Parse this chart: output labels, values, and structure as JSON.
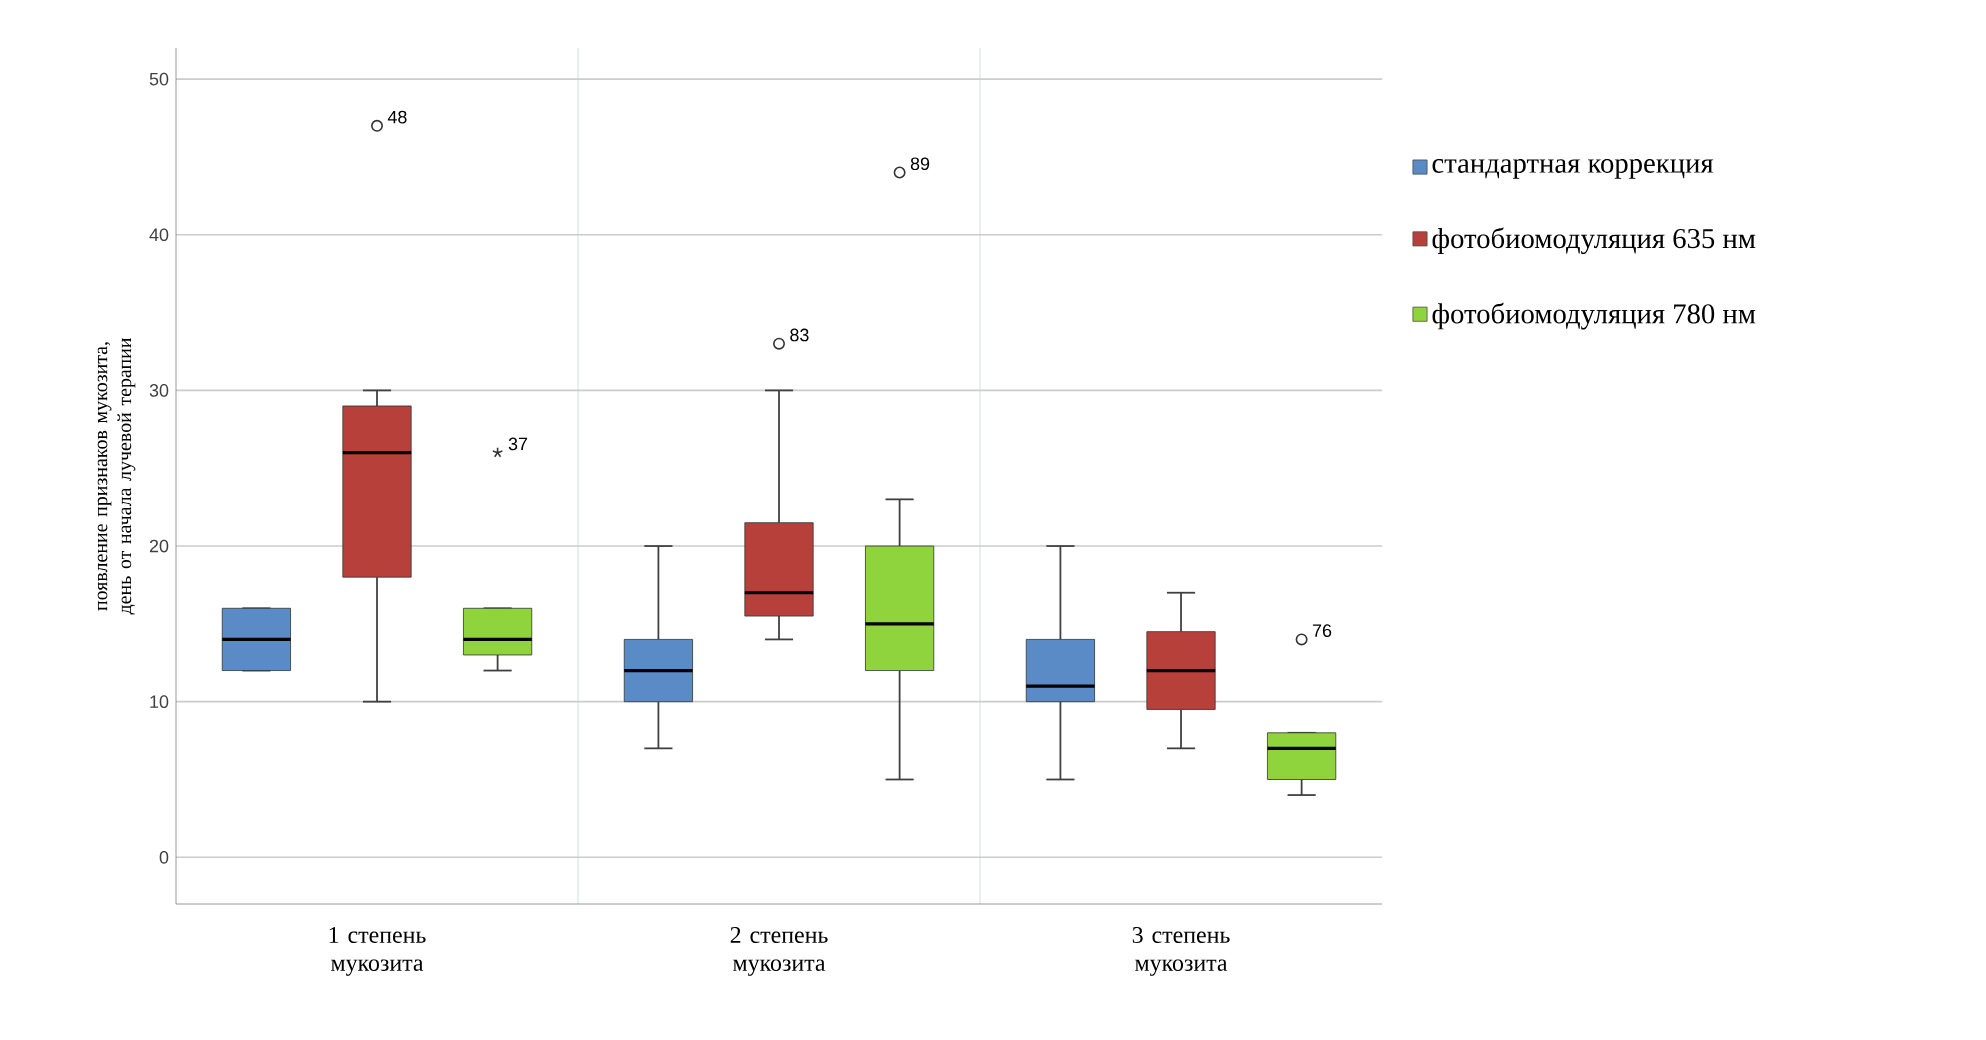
{
  "chart_data": {
    "type": "box",
    "ylabel": "появление признаков мукозита, день от начала лучевой терапии",
    "categories": [
      "1 степень мукозита",
      "2 степень мукозита",
      "3 степень мукозита"
    ],
    "ylim": [
      -3,
      52
    ],
    "yticks": [
      0,
      10,
      20,
      30,
      40,
      50
    ],
    "grid": "y",
    "legend": "right",
    "series": [
      {
        "name": "стандартная коррекция",
        "color": "#5b8bc6",
        "boxes": [
          {
            "low": 12,
            "q1": 12,
            "median": 14,
            "q3": 16,
            "high": 16
          },
          {
            "low": 7,
            "q1": 10,
            "median": 12,
            "q3": 14,
            "high": 20
          },
          {
            "low": 5,
            "q1": 10,
            "median": 11,
            "q3": 14,
            "high": 20
          }
        ]
      },
      {
        "name": "фотобиомодуляция 635 нм",
        "color": "#b8403a",
        "boxes": [
          {
            "low": 10,
            "q1": 18,
            "median": 26,
            "q3": 29,
            "high": 30,
            "outliers": [
              47
            ]
          },
          {
            "low": 14,
            "q1": 15.5,
            "median": 17,
            "q3": 21.5,
            "high": 30,
            "outliers": [
              33
            ]
          },
          {
            "low": 7,
            "q1": 9.5,
            "median": 12,
            "q3": 14.5,
            "high": 17
          }
        ]
      },
      {
        "name": "фотобиомодуляция 780  нм",
        "color": "#8fd43c",
        "boxes": [
          {
            "low": 12,
            "q1": 13,
            "median": 14,
            "q3": 16,
            "high": 16,
            "outliers": [
              26
            ]
          },
          {
            "low": 5,
            "q1": 12,
            "median": 15,
            "q3": 20,
            "high": 23,
            "outliers": [
              44
            ]
          },
          {
            "low": 4,
            "q1": 5,
            "median": 7,
            "q3": 8,
            "high": 8,
            "outliers": [
              14
            ]
          }
        ]
      }
    ],
    "annotations": [
      "48",
      "37",
      "83",
      "89",
      "76"
    ]
  }
}
